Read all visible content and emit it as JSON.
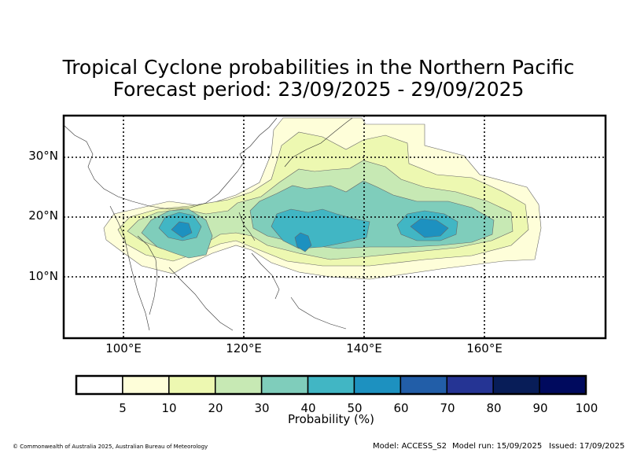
{
  "title": {
    "line1": "Tropical Cyclone probabilities in the Northern Pacific",
    "line2": "Forecast period: 23/09/2025 - 29/09/2025"
  },
  "map": {
    "lat_labels": [
      "30°N",
      "20°N",
      "10°N"
    ],
    "lon_labels": [
      "100°E",
      "120°E",
      "140°E",
      "160°E"
    ],
    "lon_range": [
      90,
      180
    ],
    "lat_range": [
      0,
      37
    ],
    "gridlines": true,
    "grid_style": "dotted"
  },
  "colorbar": {
    "title": "Probability (%)",
    "ticks": [
      "5",
      "10",
      "20",
      "30",
      "40",
      "50",
      "60",
      "70",
      "80",
      "90",
      "100"
    ],
    "colors": [
      "#ffffff",
      "#fefed9",
      "#edf8b1",
      "#c7e9b4",
      "#7fcdbb",
      "#41b6c4",
      "#1d91c0",
      "#225ea8",
      "#253494",
      "#081d58",
      "#000a5e"
    ]
  },
  "footer": {
    "copyright": "© Commonwealth of Australia 2025, Australian Bureau of Meteorology",
    "model": "Model: ACCESS_S2",
    "model_run": "Model run: 15/09/2025",
    "issued": "Issued: 17/09/2025"
  }
}
